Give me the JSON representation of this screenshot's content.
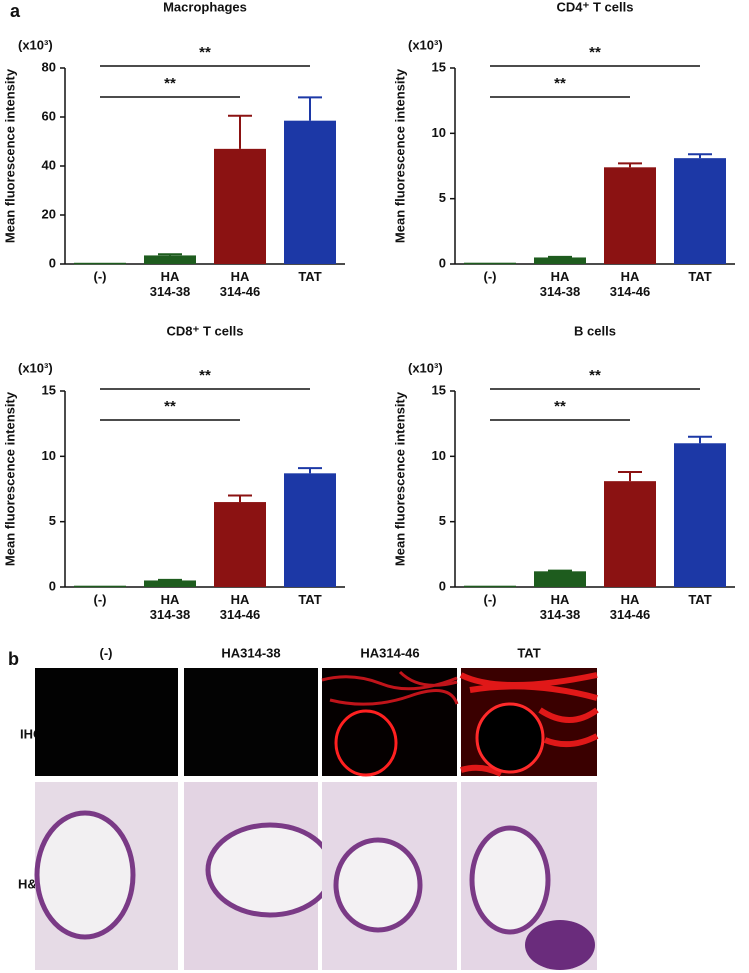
{
  "panel_a_label": "a",
  "chart_data": [
    {
      "type": "bar",
      "title": "Macrophages",
      "y_label": "Mean fluorescence intensity",
      "y_unit": "(x10³)",
      "categories": [
        "(-)",
        "HA 314-38",
        "HA 314-46",
        "TAT"
      ],
      "values": [
        0.5,
        3.5,
        47,
        58.5
      ],
      "errors": [
        0,
        0.5,
        13.5,
        9.5
      ],
      "colors": [
        "#1e5c1e",
        "#1e5c1e",
        "#8b1212",
        "#1c38a6"
      ],
      "ylim": [
        0,
        80
      ],
      "yticks": [
        0,
        20,
        40,
        60,
        80
      ],
      "annotations": [
        {
          "from": 0,
          "to": 2,
          "text": "**"
        },
        {
          "from": 0,
          "to": 3,
          "text": "**"
        }
      ]
    },
    {
      "type": "bar",
      "title": "CD4⁺ T cells",
      "y_label": "Mean fluorescence intensity",
      "y_unit": "(x10³)",
      "categories": [
        "(-)",
        "HA 314-38",
        "HA 314-46",
        "TAT"
      ],
      "values": [
        0.1,
        0.5,
        7.4,
        8.1
      ],
      "errors": [
        0,
        0.05,
        0.3,
        0.3
      ],
      "colors": [
        "#1e5c1e",
        "#1e5c1e",
        "#8b1212",
        "#1c38a6"
      ],
      "ylim": [
        0,
        15
      ],
      "yticks": [
        0,
        5,
        10,
        15
      ],
      "annotations": [
        {
          "from": 0,
          "to": 2,
          "text": "**"
        },
        {
          "from": 0,
          "to": 3,
          "text": "**"
        }
      ]
    },
    {
      "type": "bar",
      "title": "CD8⁺ T cells",
      "y_label": "Mean fluorescence intensity",
      "y_unit": "(x10³)",
      "categories": [
        "(-)",
        "HA 314-38",
        "HA 314-46",
        "TAT"
      ],
      "values": [
        0.1,
        0.5,
        6.5,
        8.7
      ],
      "errors": [
        0,
        0.05,
        0.5,
        0.4
      ],
      "colors": [
        "#1e5c1e",
        "#1e5c1e",
        "#8b1212",
        "#1c38a6"
      ],
      "ylim": [
        0,
        15
      ],
      "yticks": [
        0,
        5,
        10,
        15
      ],
      "annotations": [
        {
          "from": 0,
          "to": 2,
          "text": "**"
        },
        {
          "from": 0,
          "to": 3,
          "text": "**"
        }
      ]
    },
    {
      "type": "bar",
      "title": "B cells",
      "y_label": "Mean fluorescence intensity",
      "y_unit": "(x10³)",
      "categories": [
        "(-)",
        "HA 314-38",
        "HA 314-46",
        "TAT"
      ],
      "values": [
        0.1,
        1.2,
        8.1,
        11.0
      ],
      "errors": [
        0,
        0.05,
        0.7,
        0.5
      ],
      "colors": [
        "#1e5c1e",
        "#1e5c1e",
        "#8b1212",
        "#1c38a6"
      ],
      "ylim": [
        0,
        15
      ],
      "yticks": [
        0,
        5,
        10,
        15
      ],
      "annotations": [
        {
          "from": 0,
          "to": 2,
          "text": "**"
        },
        {
          "from": 0,
          "to": 3,
          "text": "**"
        }
      ]
    }
  ],
  "panel_b": {
    "label": "b",
    "columns": [
      "(-)",
      "HA314-38",
      "HA314-46",
      "TAT"
    ],
    "rows": [
      "IHC",
      "H&E"
    ]
  }
}
